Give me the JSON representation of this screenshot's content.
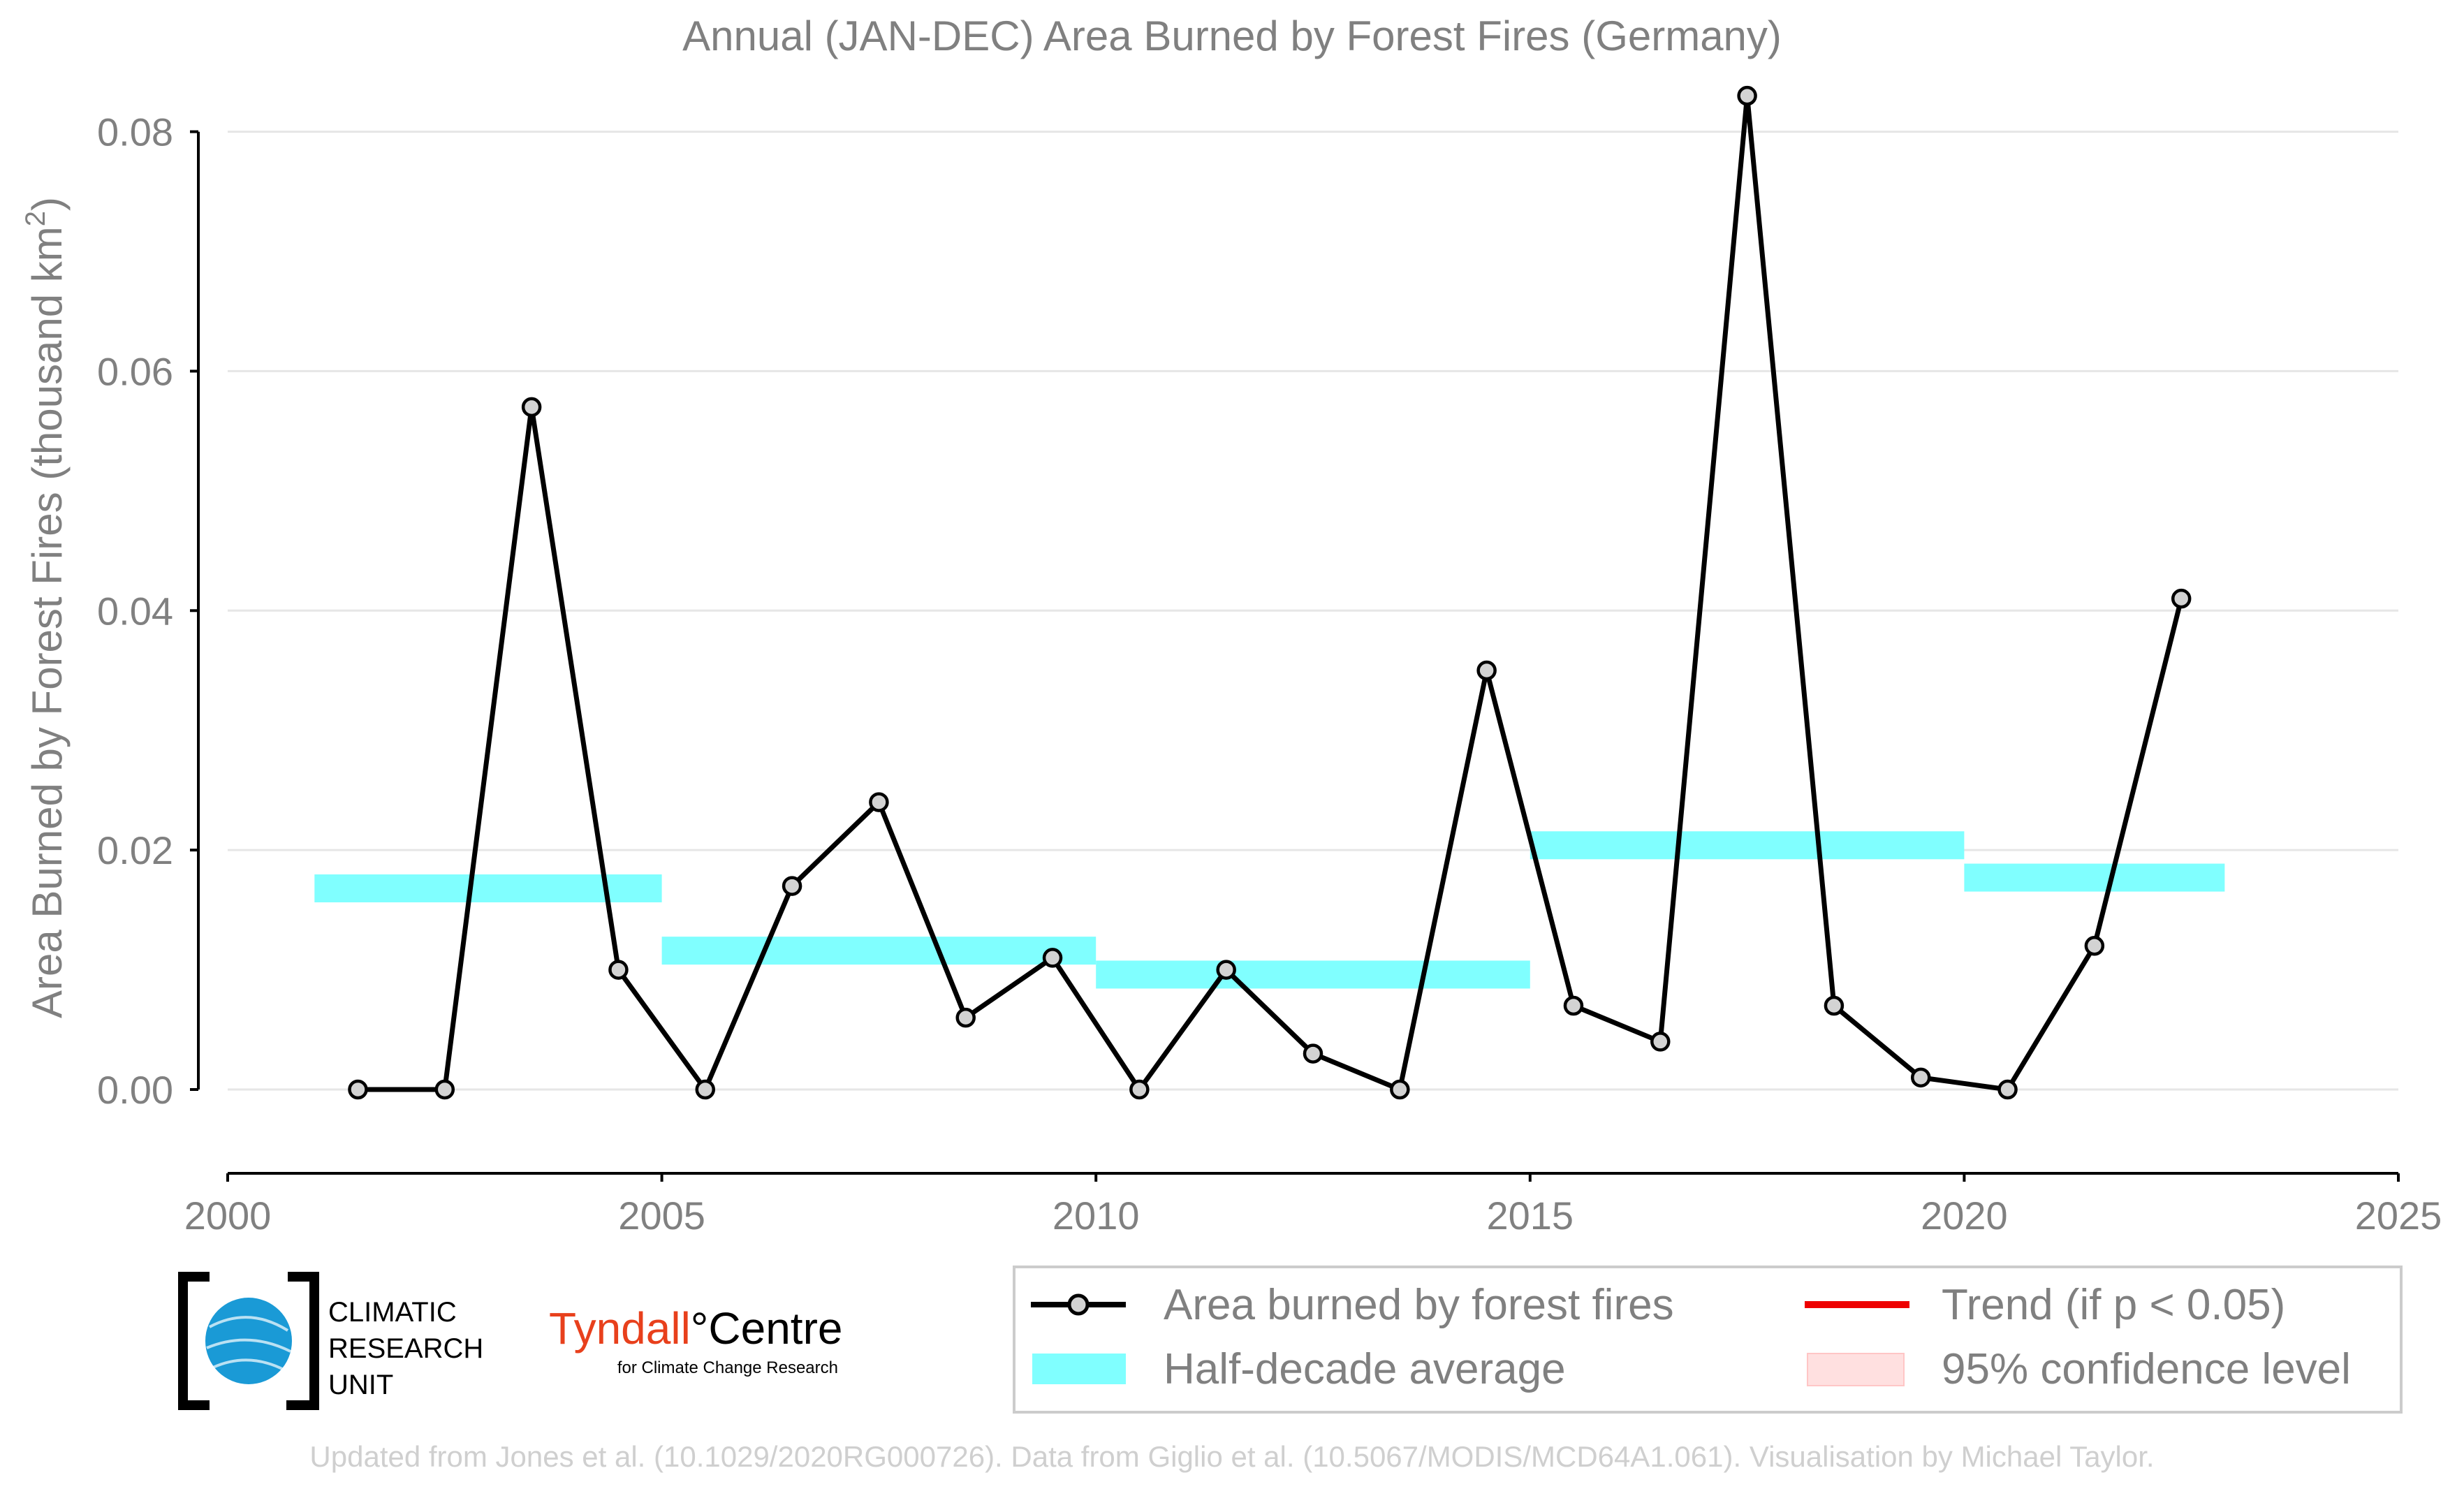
{
  "chart_data": {
    "type": "line",
    "title": "Annual (JAN-DEC) Area Burned by Forest Fires (Germany)",
    "ylabel_main": "Area Burned by Forest Fires (thousand km",
    "ylabel_sup": "2",
    "ylabel_end": ")",
    "xlim": [
      2000,
      2025
    ],
    "ylim": [
      -0.007,
      0.0805
    ],
    "x_ticks": [
      2000,
      2005,
      2010,
      2015,
      2020,
      2025
    ],
    "x_tick_labels": [
      "2000",
      "2005",
      "2010",
      "2015",
      "2020",
      "2025"
    ],
    "y_ticks": [
      0.0,
      0.02,
      0.04,
      0.06,
      0.08
    ],
    "y_tick_labels": [
      "0.00",
      "0.02",
      "0.04",
      "0.06",
      "0.08"
    ],
    "grid": "horizontal",
    "series": [
      {
        "name": "Area burned by forest fires",
        "color": "#000000",
        "marker_fill": "#d3d3d3",
        "x": [
          2001.5,
          2002.5,
          2003.5,
          2004.5,
          2005.5,
          2006.5,
          2007.5,
          2008.5,
          2009.5,
          2010.5,
          2011.5,
          2012.5,
          2013.5,
          2014.5,
          2015.5,
          2016.5,
          2017.5,
          2018.5,
          2019.5,
          2020.5,
          2021.5,
          2022.5
        ],
        "values": [
          0.0,
          0.0,
          0.057,
          0.01,
          0.0,
          0.017,
          0.024,
          0.006,
          0.011,
          0.0,
          0.01,
          0.003,
          0.0,
          0.035,
          0.007,
          0.004,
          0.083,
          0.007,
          0.001,
          0.0,
          0.012,
          0.041
        ]
      }
    ],
    "half_decade_average": {
      "name": "Half-decade average",
      "color": "#80ffff",
      "segments": [
        {
          "x0": 2001,
          "x1": 2005,
          "value": 0.0168
        },
        {
          "x0": 2005,
          "x1": 2010,
          "value": 0.0116
        },
        {
          "x0": 2010,
          "x1": 2015,
          "value": 0.0096
        },
        {
          "x0": 2015,
          "x1": 2020,
          "value": 0.0204
        },
        {
          "x0": 2020,
          "x1": 2023,
          "value": 0.0177
        }
      ]
    },
    "legend": {
      "placement": "bottom-right",
      "items": [
        {
          "label": "Area burned by forest fires",
          "style": "line-marker",
          "color": "#000000"
        },
        {
          "label": "Trend (if p < 0.05)",
          "style": "line",
          "color": "#ee0000"
        },
        {
          "label": "Half-decade average",
          "style": "band",
          "color": "#80ffff"
        },
        {
          "label": "95% confidence level",
          "style": "band",
          "color": "#ffe0e0"
        }
      ]
    }
  },
  "logos": {
    "cru_lines": [
      "CLIMATIC",
      "RESEARCH",
      "UNIT"
    ],
    "tyndall_name": "Tyndall",
    "tyndall_suffix": "°Centre",
    "tyndall_sub": "for Climate Change Research",
    "tyndall_color": "#e8401c",
    "globe_color": "#1a9ad6"
  },
  "credit": "Updated from Jones et al. (10.1029/2020RG000726). Data from Giglio et al. (10.5067/MODIS/MCD64A1.061). Visualisation by Michael Taylor."
}
